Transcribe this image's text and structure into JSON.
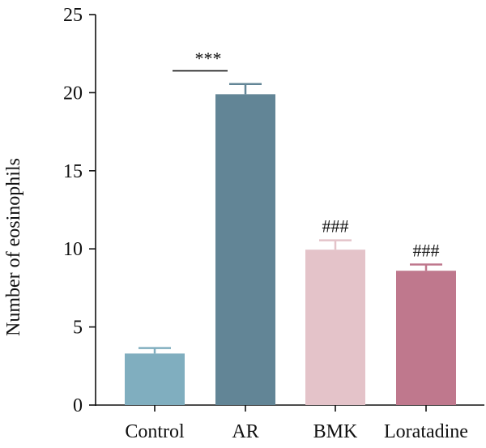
{
  "chart_data": {
    "type": "bar",
    "title": "",
    "xlabel": "",
    "ylabel": "Number of eosinophils",
    "ylim": [
      0,
      25
    ],
    "yticks": [
      0,
      5,
      10,
      15,
      20,
      25
    ],
    "grid": false,
    "legend": "none",
    "categories": [
      "Control",
      "AR",
      "BMK",
      "Loratadine"
    ],
    "values": [
      3.3,
      19.9,
      9.95,
      8.6
    ],
    "errors": [
      0.35,
      0.65,
      0.6,
      0.4
    ],
    "colors": [
      "#80aebf",
      "#628596",
      "#e4c3c9",
      "#bf788d"
    ],
    "annotations": [
      {
        "text": "***",
        "bracket": [
          "Control",
          "AR"
        ],
        "y": 21.4
      },
      {
        "text": "###",
        "category": "BMK"
      },
      {
        "text": "###",
        "category": "Loratadine"
      }
    ]
  }
}
